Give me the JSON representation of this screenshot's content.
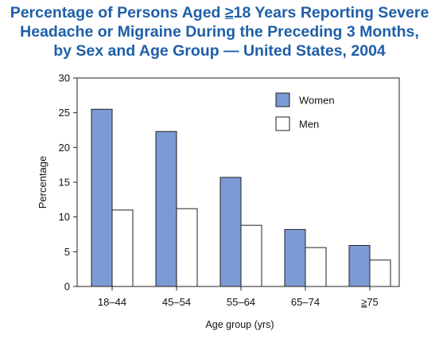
{
  "title": {
    "line1_pre": "Percentage of Persons Aged ",
    "line1_ge": "≥",
    "line1_post": "18 Years Reporting Severe",
    "line2": "Headache or Migraine During the Preceding 3 Months,",
    "line3": "by Sex and Age Group — United States, 2004"
  },
  "chart_data": {
    "type": "bar",
    "categories": [
      "18–44",
      "45–54",
      "55–64",
      "65–74",
      "≥75"
    ],
    "series": [
      {
        "name": "Women",
        "values": [
          25.5,
          22.3,
          15.7,
          8.2,
          5.9
        ],
        "color": "#7b9bd4"
      },
      {
        "name": "Men",
        "values": [
          11.0,
          11.2,
          8.8,
          5.6,
          3.8
        ],
        "color": "#ffffff"
      }
    ],
    "xlabel": "Age group (yrs)",
    "ylabel": "Percentage",
    "ylim": [
      0,
      30
    ],
    "yticks": [
      0,
      5,
      10,
      15,
      20,
      25,
      30
    ],
    "grid": false,
    "legend": "top-right"
  }
}
